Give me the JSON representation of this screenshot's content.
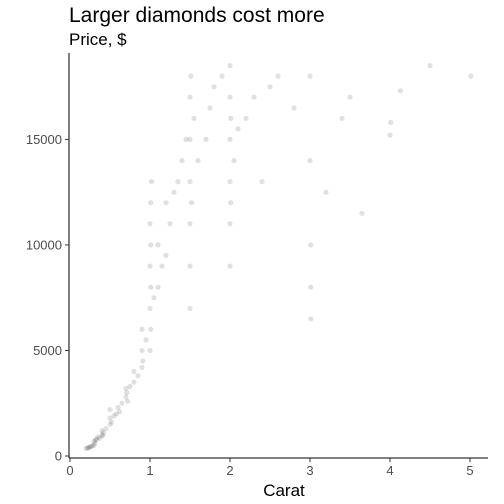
{
  "chart_data": {
    "type": "scatter",
    "title": "Larger diamonds cost more",
    "subtitle": "Price, $",
    "xlabel": "Carat",
    "ylabel": "",
    "xlim": [
      0,
      5.2
    ],
    "ylim": [
      0,
      19000
    ],
    "x_ticks": [
      0,
      1,
      2,
      3,
      4,
      5
    ],
    "x_tick_labels": [
      "0",
      "1",
      "2",
      "3",
      "4",
      "5"
    ],
    "y_ticks": [
      0,
      5000,
      10000,
      15000
    ],
    "y_tick_labels": [
      "0",
      "5000",
      "10000",
      "15000"
    ],
    "grid": false,
    "legend": "none",
    "point_color": "#000000",
    "point_opacity": 0.12,
    "series": [
      {
        "points": [
          [
            0.2,
            350
          ],
          [
            0.22,
            380
          ],
          [
            0.23,
            400
          ],
          [
            0.25,
            420
          ],
          [
            0.26,
            450
          ],
          [
            0.28,
            480
          ],
          [
            0.3,
            500
          ],
          [
            0.3,
            700
          ],
          [
            0.31,
            600
          ],
          [
            0.32,
            750
          ],
          [
            0.33,
            800
          ],
          [
            0.35,
            900
          ],
          [
            0.37,
            850
          ],
          [
            0.4,
            1000
          ],
          [
            0.4,
            1200
          ],
          [
            0.41,
            950
          ],
          [
            0.42,
            1100
          ],
          [
            0.45,
            1300
          ],
          [
            0.5,
            1500
          ],
          [
            0.5,
            1800
          ],
          [
            0.5,
            2200
          ],
          [
            0.52,
            1600
          ],
          [
            0.55,
            1900
          ],
          [
            0.58,
            2000
          ],
          [
            0.6,
            2300
          ],
          [
            0.62,
            2100
          ],
          [
            0.65,
            2500
          ],
          [
            0.7,
            2800
          ],
          [
            0.7,
            3200
          ],
          [
            0.71,
            3000
          ],
          [
            0.72,
            2600
          ],
          [
            0.75,
            3300
          ],
          [
            0.8,
            3500
          ],
          [
            0.8,
            4000
          ],
          [
            0.85,
            3800
          ],
          [
            0.9,
            4200
          ],
          [
            0.9,
            5000
          ],
          [
            0.9,
            6000
          ],
          [
            0.91,
            4500
          ],
          [
            0.95,
            5500
          ],
          [
            1.0,
            5000
          ],
          [
            1.0,
            7000
          ],
          [
            1.0,
            9000
          ],
          [
            1.0,
            11000
          ],
          [
            1.01,
            6000
          ],
          [
            1.01,
            8000
          ],
          [
            1.01,
            10000
          ],
          [
            1.01,
            12000
          ],
          [
            1.02,
            13000
          ],
          [
            1.05,
            7500
          ],
          [
            1.1,
            8000
          ],
          [
            1.1,
            10000
          ],
          [
            1.15,
            9000
          ],
          [
            1.2,
            9500
          ],
          [
            1.2,
            12000
          ],
          [
            1.25,
            11000
          ],
          [
            1.3,
            12500
          ],
          [
            1.35,
            13000
          ],
          [
            1.4,
            14000
          ],
          [
            1.45,
            15000
          ],
          [
            1.5,
            7000
          ],
          [
            1.5,
            9000
          ],
          [
            1.5,
            11000
          ],
          [
            1.5,
            13000
          ],
          [
            1.5,
            15000
          ],
          [
            1.5,
            17000
          ],
          [
            1.51,
            18000
          ],
          [
            1.52,
            12000
          ],
          [
            1.55,
            16000
          ],
          [
            1.6,
            14000
          ],
          [
            1.7,
            15000
          ],
          [
            1.75,
            16500
          ],
          [
            1.8,
            17500
          ],
          [
            1.9,
            18000
          ],
          [
            2.0,
            9000
          ],
          [
            2.0,
            11000
          ],
          [
            2.0,
            13000
          ],
          [
            2.0,
            15000
          ],
          [
            2.0,
            17000
          ],
          [
            2.0,
            18500
          ],
          [
            2.01,
            12000
          ],
          [
            2.01,
            16000
          ],
          [
            2.05,
            14000
          ],
          [
            2.1,
            15500
          ],
          [
            2.2,
            16000
          ],
          [
            2.3,
            17000
          ],
          [
            2.4,
            13000
          ],
          [
            2.5,
            17500
          ],
          [
            2.6,
            18000
          ],
          [
            2.8,
            16500
          ],
          [
            3.0,
            18000
          ],
          [
            3.0,
            14000
          ],
          [
            3.01,
            10000
          ],
          [
            3.01,
            8000
          ],
          [
            3.01,
            6500
          ],
          [
            3.2,
            12500
          ],
          [
            3.4,
            16000
          ],
          [
            3.5,
            17000
          ],
          [
            3.65,
            11500
          ],
          [
            4.0,
            15200
          ],
          [
            4.01,
            15800
          ],
          [
            4.13,
            17300
          ],
          [
            4.5,
            18500
          ],
          [
            5.01,
            18000
          ]
        ]
      }
    ]
  }
}
